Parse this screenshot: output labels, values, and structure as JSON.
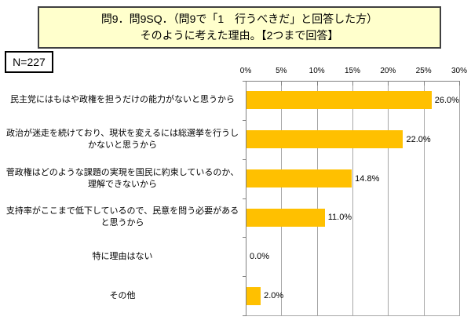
{
  "title": {
    "line1": "問9．問9SQ．（問9で「1　行うべきだ」と回答した方）",
    "line2": "そのように考えた理由。【2つまで回答】"
  },
  "sample_size": "N=227",
  "chart_data": {
    "type": "bar",
    "orientation": "horizontal",
    "title": "問9．問9SQ．（問9で「1　行うべきだ」と回答した方）そのように考えた理由。【2つまで回答】",
    "n_label": "N=227",
    "categories": [
      "民主党にはもはや政権を担うだけの能力がないと思うから",
      "政治が迷走を続けており、現状を変えるには総選挙を行うしかないと思うから",
      "菅政権はどのような課題の実現を国民に約束しているのか、理解できないから",
      "支持率がここまで低下しているので、民意を問う必要があると思うから",
      "特に理由はない",
      "その他"
    ],
    "values": [
      26.0,
      22.0,
      14.8,
      11.0,
      0.0,
      2.0
    ],
    "value_labels": [
      "26.0%",
      "22.0%",
      "14.8%",
      "11.0%",
      "0.0%",
      "2.0%"
    ],
    "x_ticks": [
      "0%",
      "5%",
      "10%",
      "15%",
      "20%",
      "25%",
      "30%"
    ],
    "xlim": [
      0,
      30
    ],
    "grid": true,
    "legend": "none",
    "axis_position": "top",
    "colors": {
      "bar": "#FFC000",
      "gridline": "#A6A6A6",
      "axis": "#808080",
      "title_box_bg": "#FFFFCC",
      "title_box_border": "#404040",
      "text": "#000000"
    }
  }
}
